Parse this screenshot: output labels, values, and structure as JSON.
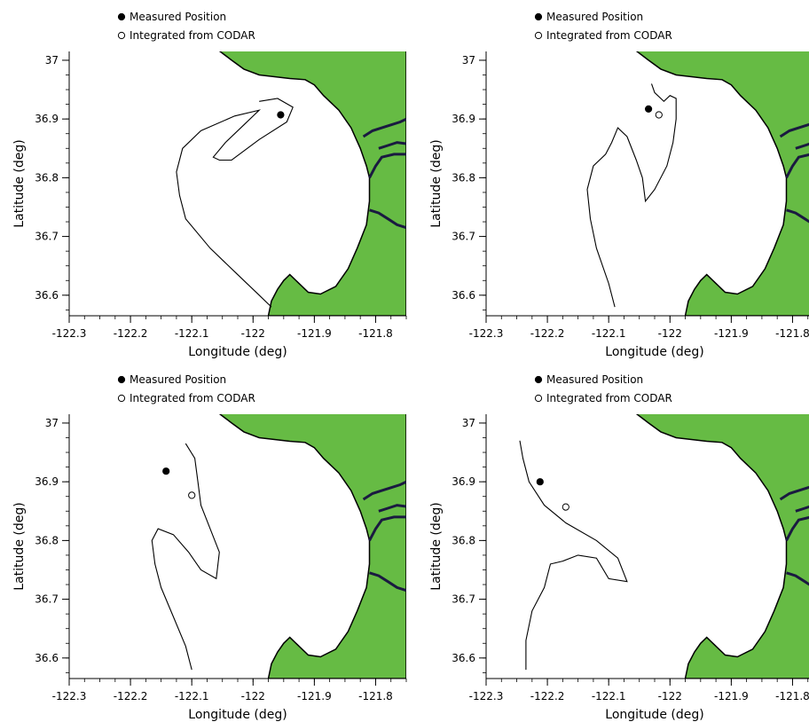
{
  "chart_data": [
    {
      "type": "scatter",
      "title": "",
      "xlabel": "Longitude (deg)",
      "ylabel": "Latitude (deg)",
      "xlim": [
        -122.3,
        -121.75
      ],
      "ylim": [
        36.565,
        37.015
      ],
      "xticks": [
        "-122.3",
        "-122.2",
        "-122.1",
        "-122",
        "-121.9",
        "-121.8"
      ],
      "yticks": [
        "36.6",
        "36.7",
        "36.8",
        "36.9",
        "37"
      ],
      "grid": false,
      "legend_placement": "top-left",
      "legend": [
        "Measured Position",
        "Integrated from CODAR"
      ],
      "series": [
        {
          "name": "Measured Position",
          "marker": "filled-circle",
          "points": [
            [
              -121.955,
              36.907
            ]
          ]
        },
        {
          "name": "Integrated from CODAR",
          "marker": "open-circle",
          "points": []
        }
      ],
      "patch_curve": [
        [
          -121.99,
          36.93
        ],
        [
          -121.96,
          36.935
        ],
        [
          -121.935,
          36.92
        ],
        [
          -121.945,
          36.895
        ],
        [
          -121.99,
          36.865
        ],
        [
          -122.035,
          36.83
        ],
        [
          -122.055,
          36.83
        ],
        [
          -122.065,
          36.835
        ],
        [
          -122.045,
          36.86
        ],
        [
          -122.015,
          36.89
        ],
        [
          -121.99,
          36.915
        ],
        [
          -122.03,
          36.905
        ],
        [
          -122.085,
          36.88
        ],
        [
          -122.115,
          36.85
        ],
        [
          -122.125,
          36.81
        ],
        [
          -122.12,
          36.77
        ],
        [
          -122.11,
          36.73
        ],
        [
          -122.07,
          36.68
        ],
        [
          -122.03,
          36.64
        ],
        [
          -121.99,
          36.6
        ],
        [
          -121.97,
          36.58
        ]
      ]
    },
    {
      "type": "scatter",
      "title": "",
      "xlabel": "Longitude (deg)",
      "ylabel": "Latitude (deg)",
      "xlim": [
        -122.3,
        -121.75
      ],
      "ylim": [
        36.565,
        37.015
      ],
      "xticks": [
        "-122.3",
        "-122.2",
        "-122.1",
        "-122",
        "-121.9",
        "-121.8"
      ],
      "yticks": [
        "36.6",
        "36.7",
        "36.8",
        "36.9",
        "37"
      ],
      "grid": false,
      "legend_placement": "top-left",
      "legend": [
        "Measured Position",
        "Integrated from CODAR"
      ],
      "series": [
        {
          "name": "Measured Position",
          "marker": "filled-circle",
          "points": [
            [
              -122.035,
              36.917
            ]
          ]
        },
        {
          "name": "Integrated from CODAR",
          "marker": "open-circle",
          "points": [
            [
              -122.018,
              36.907
            ]
          ]
        }
      ],
      "patch_curve": [
        [
          -122.09,
          36.58
        ],
        [
          -122.1,
          36.62
        ],
        [
          -122.12,
          36.68
        ],
        [
          -122.13,
          36.73
        ],
        [
          -122.135,
          36.78
        ],
        [
          -122.125,
          36.82
        ],
        [
          -122.105,
          36.84
        ],
        [
          -122.095,
          36.86
        ],
        [
          -122.085,
          36.885
        ],
        [
          -122.07,
          36.87
        ],
        [
          -122.055,
          36.83
        ],
        [
          -122.045,
          36.8
        ],
        [
          -122.04,
          36.76
        ],
        [
          -122.025,
          36.78
        ],
        [
          -122.005,
          36.82
        ],
        [
          -121.995,
          36.86
        ],
        [
          -121.99,
          36.9
        ],
        [
          -121.99,
          36.935
        ],
        [
          -122.0,
          36.94
        ],
        [
          -122.01,
          36.93
        ],
        [
          -122.025,
          36.945
        ],
        [
          -122.03,
          36.96
        ]
      ]
    },
    {
      "type": "scatter",
      "title": "",
      "xlabel": "Longitude (deg)",
      "ylabel": "Latitude (deg)",
      "xlim": [
        -122.3,
        -121.75
      ],
      "ylim": [
        36.565,
        37.015
      ],
      "xticks": [
        "-122.3",
        "-122.2",
        "-122.1",
        "-122",
        "-121.9",
        "-121.8"
      ],
      "yticks": [
        "36.6",
        "36.7",
        "36.8",
        "36.9",
        "37"
      ],
      "grid": false,
      "legend_placement": "top-left",
      "legend": [
        "Measured Position",
        "Integrated from CODAR"
      ],
      "series": [
        {
          "name": "Measured Position",
          "marker": "filled-circle",
          "points": [
            [
              -122.142,
              36.918
            ]
          ]
        },
        {
          "name": "Integrated from CODAR",
          "marker": "open-circle",
          "points": [
            [
              -122.1,
              36.877
            ]
          ]
        }
      ],
      "patch_curve": [
        [
          -122.1,
          36.58
        ],
        [
          -122.11,
          36.62
        ],
        [
          -122.13,
          36.67
        ],
        [
          -122.15,
          36.72
        ],
        [
          -122.16,
          36.76
        ],
        [
          -122.165,
          36.8
        ],
        [
          -122.155,
          36.82
        ],
        [
          -122.13,
          36.81
        ],
        [
          -122.105,
          36.78
        ],
        [
          -122.085,
          36.75
        ],
        [
          -122.06,
          36.735
        ],
        [
          -122.055,
          36.78
        ],
        [
          -122.07,
          36.82
        ],
        [
          -122.085,
          36.86
        ],
        [
          -122.09,
          36.9
        ],
        [
          -122.095,
          36.94
        ],
        [
          -122.11,
          36.965
        ]
      ]
    },
    {
      "type": "scatter",
      "title": "",
      "xlabel": "Longitude (deg)",
      "ylabel": "Latitude (deg)",
      "xlim": [
        -122.3,
        -121.75
      ],
      "ylim": [
        36.565,
        37.015
      ],
      "xticks": [
        "-122.3",
        "-122.2",
        "-122.1",
        "-122",
        "-121.9",
        "-121.8"
      ],
      "yticks": [
        "36.6",
        "36.7",
        "36.8",
        "36.9",
        "37"
      ],
      "grid": false,
      "legend_placement": "top-left",
      "legend": [
        "Measured Position",
        "Integrated from CODAR"
      ],
      "series": [
        {
          "name": "Measured Position",
          "marker": "filled-circle",
          "points": [
            [
              -122.212,
              36.9
            ]
          ]
        },
        {
          "name": "Integrated from CODAR",
          "marker": "open-circle",
          "points": [
            [
              -122.17,
              36.857
            ]
          ]
        }
      ],
      "patch_curve": [
        [
          -122.235,
          36.58
        ],
        [
          -122.235,
          36.63
        ],
        [
          -122.225,
          36.68
        ],
        [
          -122.205,
          36.72
        ],
        [
          -122.195,
          36.76
        ],
        [
          -122.175,
          36.765
        ],
        [
          -122.15,
          36.775
        ],
        [
          -122.12,
          36.77
        ],
        [
          -122.1,
          36.735
        ],
        [
          -122.07,
          36.73
        ],
        [
          -122.085,
          36.77
        ],
        [
          -122.12,
          36.8
        ],
        [
          -122.17,
          36.83
        ],
        [
          -122.205,
          36.86
        ],
        [
          -122.23,
          36.9
        ],
        [
          -122.24,
          36.94
        ],
        [
          -122.245,
          36.97
        ]
      ]
    }
  ],
  "map": {
    "land_color": "#66bb44",
    "coast_color": "#000000",
    "river_color": "#1a1a40"
  },
  "colors": {
    "marker": "#000000",
    "curve": "#000000"
  }
}
